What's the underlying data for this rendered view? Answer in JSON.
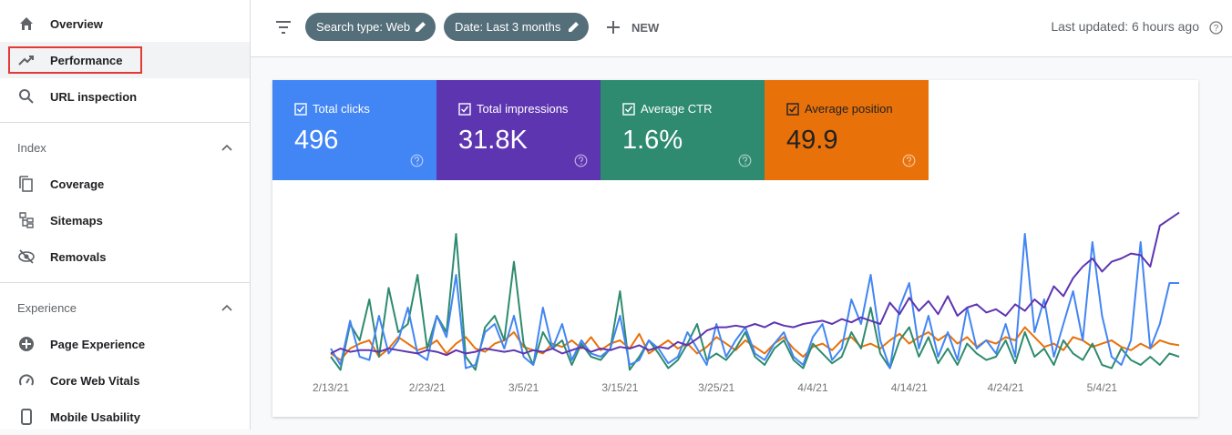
{
  "sidebar": {
    "items": [
      "Overview",
      "Performance",
      "URL inspection"
    ],
    "sections": [
      {
        "title": "Index",
        "items": [
          "Coverage",
          "Sitemaps",
          "Removals"
        ]
      },
      {
        "title": "Experience",
        "items": [
          "Page Experience",
          "Core Web Vitals",
          "Mobile Usability"
        ]
      }
    ]
  },
  "toolbar": {
    "chips": [
      "Search type: Web",
      "Date: Last 3 months"
    ],
    "new": "NEW",
    "last_updated": "Last updated: 6 hours ago"
  },
  "chart_data": {
    "type": "line",
    "categories": [
      "2/13/21",
      null,
      null,
      null,
      null,
      null,
      null,
      null,
      null,
      null,
      "2/23/21",
      null,
      null,
      null,
      null,
      null,
      null,
      null,
      null,
      null,
      "3/5/21",
      null,
      null,
      null,
      null,
      null,
      null,
      null,
      null,
      null,
      "3/15/21",
      null,
      null,
      null,
      null,
      null,
      null,
      null,
      null,
      null,
      "3/25/21",
      null,
      null,
      null,
      null,
      null,
      null,
      null,
      null,
      null,
      "4/4/21",
      null,
      null,
      null,
      null,
      null,
      null,
      null,
      null,
      null,
      "4/14/21",
      null,
      null,
      null,
      null,
      null,
      null,
      null,
      null,
      null,
      "4/24/21",
      null,
      null,
      null,
      null,
      null,
      null,
      null,
      null,
      null,
      "5/4/21",
      null,
      null,
      null,
      null,
      null,
      null,
      null,
      null
    ],
    "ylim": [
      0,
      100
    ],
    "series": [
      {
        "name": "Total clicks",
        "summary": "496",
        "color": "#4285f4",
        "values": [
          15,
          5,
          32,
          10,
          8,
          35,
          12,
          20,
          40,
          12,
          8,
          35,
          22,
          60,
          3,
          5,
          25,
          30,
          15,
          35,
          10,
          5,
          40,
          15,
          30,
          8,
          20,
          12,
          10,
          15,
          35,
          5,
          8,
          20,
          15,
          6,
          10,
          25,
          15,
          5,
          30,
          10,
          20,
          28,
          12,
          8,
          18,
          25,
          10,
          5,
          22,
          30,
          8,
          15,
          45,
          30,
          60,
          20,
          3,
          40,
          55,
          15,
          35,
          10,
          25,
          8,
          40,
          15,
          20,
          12,
          30,
          10,
          85,
          25,
          45,
          10,
          30,
          50,
          20,
          80,
          35,
          10,
          5,
          20,
          80,
          15,
          30,
          55,
          55
        ]
      },
      {
        "name": "Total impressions",
        "summary": "31.8K",
        "color": "#5e35b1",
        "values": [
          12,
          15,
          13,
          14,
          14,
          13,
          15,
          14,
          13,
          12,
          14,
          13,
          11,
          14,
          12,
          13,
          15,
          14,
          13,
          14,
          12,
          14,
          13,
          15,
          12,
          14,
          16,
          13,
          15,
          14,
          16,
          15,
          17,
          14,
          16,
          15,
          19,
          17,
          21,
          26,
          28,
          28,
          29,
          28,
          30,
          28,
          31,
          29,
          28,
          30,
          31,
          32,
          30,
          33,
          31,
          34,
          32,
          30,
          43,
          36,
          46,
          38,
          44,
          36,
          47,
          35,
          40,
          42,
          37,
          39,
          35,
          42,
          38,
          45,
          40,
          53,
          47,
          58,
          65,
          70,
          62,
          68,
          70,
          73,
          72,
          65,
          90,
          94,
          98
        ]
      },
      {
        "name": "Average CTR",
        "summary": "1.6%",
        "color": "#2e8b6f",
        "values": [
          10,
          2,
          30,
          20,
          45,
          10,
          52,
          25,
          30,
          60,
          15,
          35,
          25,
          85,
          10,
          2,
          28,
          35,
          20,
          68,
          18,
          5,
          25,
          15,
          20,
          5,
          18,
          10,
          8,
          15,
          50,
          2,
          10,
          20,
          12,
          3,
          8,
          18,
          30,
          8,
          12,
          8,
          15,
          25,
          10,
          5,
          15,
          20,
          8,
          3,
          18,
          12,
          6,
          10,
          25,
          15,
          40,
          12,
          3,
          20,
          28,
          10,
          22,
          6,
          15,
          5,
          18,
          12,
          8,
          10,
          20,
          6,
          25,
          10,
          15,
          5,
          20,
          12,
          8,
          18,
          5,
          3,
          15,
          8,
          5,
          10,
          5,
          12,
          10
        ]
      },
      {
        "name": "Average position",
        "summary": "49.9",
        "color": "#e8710a",
        "values": [
          12,
          8,
          15,
          18,
          20,
          10,
          15,
          22,
          18,
          14,
          16,
          20,
          12,
          18,
          22,
          15,
          13,
          18,
          20,
          25,
          16,
          14,
          12,
          18,
          16,
          20,
          15,
          22,
          14,
          18,
          20,
          15,
          24,
          12,
          16,
          20,
          15,
          18,
          12,
          16,
          22,
          18,
          14,
          20,
          16,
          12,
          18,
          22,
          15,
          10,
          16,
          18,
          14,
          20,
          22,
          16,
          18,
          15,
          20,
          24,
          18,
          22,
          25,
          20,
          24,
          18,
          22,
          16,
          20,
          18,
          22,
          20,
          28,
          22,
          16,
          18,
          14,
          22,
          20,
          16,
          18,
          20,
          16,
          14,
          18,
          15,
          20,
          18,
          17
        ]
      }
    ]
  }
}
